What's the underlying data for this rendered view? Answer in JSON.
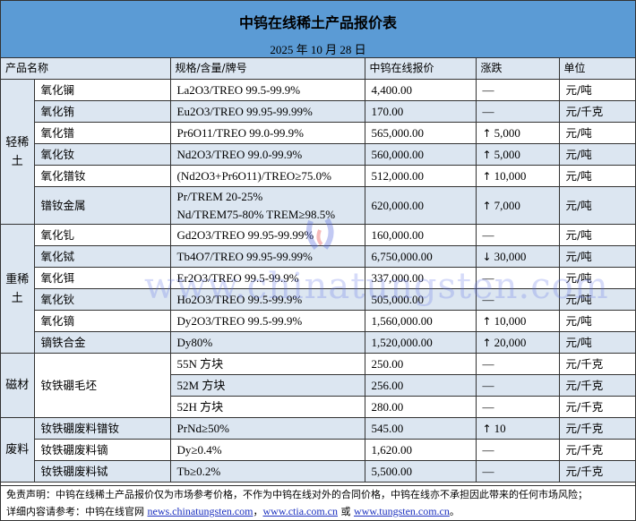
{
  "title": "中钨在线稀土产品报价表",
  "date": "2025 年 10 月 28 日",
  "headers": [
    "产品名称",
    "规格/含量/牌号",
    "中钨在线报价",
    "涨跌",
    "单位"
  ],
  "colors": {
    "title_bg": "#5b9bd5",
    "row_alt": "#dce6f1"
  },
  "groups": [
    {
      "label": "轻稀土",
      "rows": [
        {
          "name": "氧化镧",
          "spec": "La2O3/TREO 99.5-99.9%",
          "price": "4,400.00",
          "change": "—",
          "direction": "flat",
          "unit": "元/吨"
        },
        {
          "name": "氧化铕",
          "spec": "Eu2O3/TREO 99.95-99.99%",
          "price": "170.00",
          "change": "—",
          "direction": "flat",
          "unit": "元/千克"
        },
        {
          "name": "氧化镨",
          "spec": "Pr6O11/TREO 99.0-99.9%",
          "price": "565,000.00",
          "change": "5,000",
          "direction": "up",
          "unit": "元/吨"
        },
        {
          "name": "氧化钕",
          "spec": "Nd2O3/TREO 99.0-99.9%",
          "price": "560,000.00",
          "change": "5,000",
          "direction": "up",
          "unit": "元/吨"
        },
        {
          "name": "氧化镨钕",
          "spec": "(Nd2O3+Pr6O11)/TREO≥75.0%",
          "price": "512,000.00",
          "change": "10,000",
          "direction": "up",
          "unit": "元/吨"
        },
        {
          "name": "镨钕金属",
          "spec": "Pr/TREM 20-25%",
          "spec2": "Nd/TREM75-80% TREM≥98.5%",
          "price": "620,000.00",
          "change": "7,000",
          "direction": "up",
          "unit": "元/吨"
        }
      ]
    },
    {
      "label": "重稀土",
      "rows": [
        {
          "name": "氧化钆",
          "spec": "Gd2O3/TREO 99.95-99.99%",
          "price": "160,000.00",
          "change": "—",
          "direction": "flat",
          "unit": "元/吨"
        },
        {
          "name": "氧化铽",
          "spec": "Tb4O7/TREO 99.95-99.99%",
          "price": "6,750,000.00",
          "change": "30,000",
          "direction": "down",
          "unit": "元/吨"
        },
        {
          "name": "氧化铒",
          "spec": "Er2O3/TREO 99.5-99.9%",
          "price": "337,000.00",
          "change": "—",
          "direction": "flat",
          "unit": "元/吨"
        },
        {
          "name": "氧化钬",
          "spec": "Ho2O3/TREO 99.5-99.9%",
          "price": "505,000.00",
          "change": "—",
          "direction": "flat",
          "unit": "元/吨"
        },
        {
          "name": "氧化镝",
          "spec": "Dy2O3/TREO 99.5-99.9%",
          "price": "1,560,000.00",
          "change": "10,000",
          "direction": "up",
          "unit": "元/吨"
        },
        {
          "name": "镝铁合金",
          "spec": "Dy80%",
          "price": "1,520,000.00",
          "change": "20,000",
          "direction": "up",
          "unit": "元/吨"
        }
      ]
    },
    {
      "label": "磁材",
      "shared_name": "钕铁硼毛坯",
      "rows": [
        {
          "spec": "55N 方块",
          "price": "250.00",
          "change": "—",
          "direction": "flat",
          "unit": "元/千克"
        },
        {
          "spec": "52M 方块",
          "price": "256.00",
          "change": "—",
          "direction": "flat",
          "unit": "元/千克"
        },
        {
          "spec": "52H 方块",
          "price": "280.00",
          "change": "—",
          "direction": "flat",
          "unit": "元/千克"
        }
      ]
    },
    {
      "label": "废料",
      "rows": [
        {
          "name": "钕铁硼废料镨钕",
          "spec": "PrNd≥50%",
          "price": "545.00",
          "change": "10",
          "direction": "up",
          "unit": "元/千克"
        },
        {
          "name": "钕铁硼废料镝",
          "spec": "Dy≥0.4%",
          "price": "1,620.00",
          "change": "—",
          "direction": "flat",
          "unit": "元/千克"
        },
        {
          "name": "钕铁硼废料铽",
          "spec": "Tb≥0.2%",
          "price": "5,500.00",
          "change": "—",
          "direction": "flat",
          "unit": "元/千克"
        }
      ]
    }
  ],
  "footer": {
    "disclaimer": "免责声明：中钨在线稀土产品报价仅为市场参考价格，不作为中钨在线对外的合同价格，中钨在线亦不承担因此带来的任何市场风险；",
    "ref_prefix": "详细内容请参考：中钨在线官网 ",
    "link1": "news.chinatungsten.com",
    "sep1": "，",
    "link2": "www.ctia.com.cn",
    "sep2": " 或 ",
    "link3": "www.tungsten.com.cn",
    "end": "。"
  },
  "watermark": "www.chinatungsten.com",
  "watermark_logo": "CWMS"
}
